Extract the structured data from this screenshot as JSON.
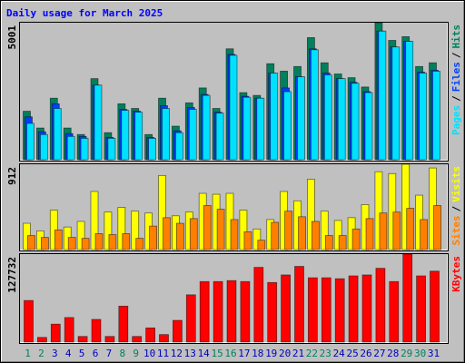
{
  "chart_data": [
    {
      "type": "bar",
      "title": "Daily usage for March 2025",
      "legend_separator": "/",
      "ylim": [
        0,
        5001
      ],
      "yticks": [
        5001
      ],
      "series": [
        {
          "name": "Hits",
          "color": "#00805c",
          "values": [
            1769,
            1157,
            2245,
            1157,
            919,
            2960,
            987,
            2041,
            1871,
            919,
            2245,
            1225,
            2075,
            2620,
            1871,
            4048,
            2449,
            2347,
            3504,
            3232,
            3402,
            4457,
            3538,
            3130,
            2994,
            2654,
            5001,
            4355,
            4491,
            3402,
            3538
          ]
        },
        {
          "name": "Files",
          "color": "#0040ff",
          "values": [
            1565,
            1021,
            2041,
            953,
            851,
            2722,
            816,
            1837,
            1769,
            816,
            1973,
            1055,
            1905,
            2381,
            1735,
            3844,
            2313,
            2245,
            3164,
            2620,
            3028,
            4048,
            3164,
            2960,
            2824,
            2483,
            4695,
            4116,
            4321,
            3198,
            3266
          ]
        },
        {
          "name": "Pages",
          "color": "#00e0ff",
          "values": [
            1327,
            919,
            1871,
            851,
            782,
            2722,
            782,
            1803,
            1735,
            782,
            1871,
            987,
            1837,
            2347,
            1701,
            3810,
            2279,
            2245,
            3164,
            2483,
            3028,
            4014,
            3096,
            2960,
            2790,
            2449,
            4695,
            4116,
            4321,
            3164,
            3232
          ]
        }
      ]
    },
    {
      "type": "bar",
      "legend_separator": "/",
      "ylim": [
        0,
        912
      ],
      "yticks": [
        912
      ],
      "series": [
        {
          "name": "Visits",
          "color": "#ffff00",
          "values": [
            281,
            200,
            421,
            241,
            301,
            621,
            401,
            451,
            411,
            391,
            792,
            361,
            401,
            601,
            591,
            601,
            421,
            220,
            321,
            621,
            521,
            752,
            411,
            311,
            341,
            481,
            832,
            812,
            912,
            581,
            872
          ]
        },
        {
          "name": "Sites",
          "color": "#ff8000",
          "values": [
            150,
            130,
            210,
            130,
            120,
            170,
            160,
            170,
            120,
            251,
            341,
            281,
            331,
            471,
            431,
            321,
            190,
            100,
            291,
            411,
            351,
            301,
            150,
            150,
            220,
            331,
            391,
            401,
            441,
            321,
            471
          ]
        }
      ]
    },
    {
      "type": "bar",
      "ylim": [
        0,
        127732
      ],
      "yticks": [
        127732
      ],
      "series": [
        {
          "name": "KBytes",
          "color": "#ff0000",
          "values": [
            60434,
            6868,
            26097,
            35711,
            8241,
            32964,
            8241,
            52193,
            8241,
            20603,
            10988,
            31591,
            68675,
            87904,
            87904,
            89278,
            87904,
            108507,
            86531,
            97519,
            109880,
            93398,
            93398,
            92025,
            96145,
            97519,
            107133,
            87904,
            127732,
            96145,
            103012
          ]
        }
      ],
      "categories": [
        "1",
        "2",
        "3",
        "4",
        "5",
        "6",
        "7",
        "8",
        "9",
        "10",
        "11",
        "12",
        "13",
        "14",
        "15",
        "16",
        "17",
        "18",
        "19",
        "20",
        "21",
        "22",
        "23",
        "24",
        "25",
        "26",
        "27",
        "28",
        "29",
        "30",
        "31"
      ],
      "category_colors": [
        "#00805c",
        "#00805c",
        "#0000c0",
        "#0000c0",
        "#0000c0",
        "#0000c0",
        "#0000c0",
        "#00805c",
        "#00805c",
        "#0000c0",
        "#0000c0",
        "#0000c0",
        "#0000c0",
        "#0000c0",
        "#00805c",
        "#00805c",
        "#0000c0",
        "#0000c0",
        "#0000c0",
        "#0000c0",
        "#0000c0",
        "#00805c",
        "#00805c",
        "#0000c0",
        "#0000c0",
        "#0000c0",
        "#0000c0",
        "#0000c0",
        "#00805c",
        "#00805c",
        "#0000c0"
      ]
    }
  ]
}
